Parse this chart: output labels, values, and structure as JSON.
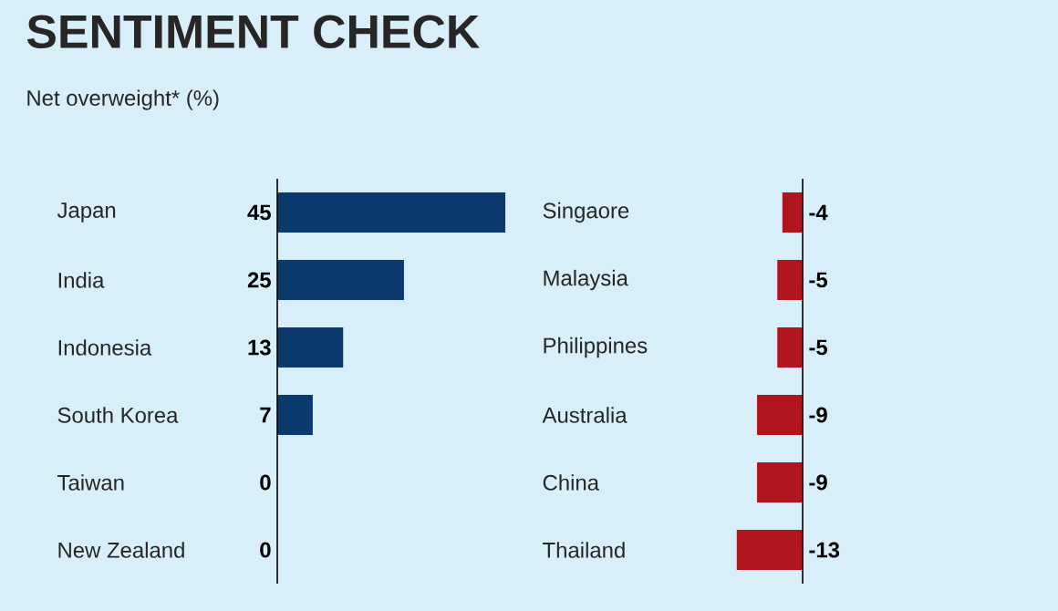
{
  "chart_data": [
    {
      "type": "bar",
      "orientation": "horizontal",
      "title": "SENTIMENT CHECK",
      "subtitle": "Net overweight* (%)",
      "categories": [
        "Japan",
        "India",
        "Indonesia",
        "South Korea",
        "Taiwan",
        "New Zealand"
      ],
      "values": [
        45,
        25,
        13,
        7,
        0,
        0
      ],
      "color": "#0b3a6e",
      "data_labels": true,
      "tick_labels": "y"
    },
    {
      "type": "bar",
      "orientation": "horizontal",
      "categories": [
        "Singaore",
        "Malaysia",
        "Philippines",
        "Australia",
        "China",
        "Thailand"
      ],
      "values": [
        -4,
        -5,
        -5,
        -9,
        -9,
        -13
      ],
      "color": "#b0141c",
      "data_labels": true,
      "tick_labels": "y"
    }
  ]
}
